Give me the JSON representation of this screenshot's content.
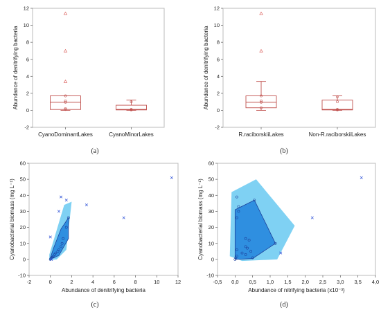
{
  "panels": [
    "(a)",
    "(b)",
    "(c)",
    "(d)"
  ],
  "colors": {
    "box": "#c0504d",
    "outlier": "#d9534f",
    "point": "#3a5bd9",
    "hull_outer": "#7fd1f3",
    "hull_inner": "#2f8fe0",
    "hull_inner_edge": "#1c3f9a",
    "frame": "#bbbbbb"
  },
  "chart_data": [
    {
      "type": "box",
      "panel": "(a)",
      "title": "",
      "xlabel": "",
      "ylabel": "Abundance of denitrifying bacteria",
      "ylim": [
        -2,
        12
      ],
      "yticks": [
        -2,
        0,
        2,
        4,
        6,
        8,
        10,
        12
      ],
      "grid": false,
      "categories": [
        "CyanoDominantLakes",
        "CyanoMinorLakes"
      ],
      "boxes": [
        {
          "whisker_low": 0,
          "q1": 0.1,
          "median": 0.95,
          "q3": 1.7,
          "whisker_high": 1.7,
          "points": [
            0.1,
            0.2,
            0.95,
            1.1,
            1.7
          ],
          "outliers": [
            3.4,
            7.0,
            11.4
          ]
        },
        {
          "whisker_low": 0,
          "q1": 0.05,
          "median": 0.1,
          "q3": 0.6,
          "whisker_high": 1.2,
          "points": [
            0.05,
            0.1,
            1.0
          ],
          "outliers": []
        }
      ]
    },
    {
      "type": "box",
      "panel": "(b)",
      "title": "",
      "xlabel": "",
      "ylabel": "Abundance of denitrifying bacteria",
      "ylim": [
        -2,
        12
      ],
      "yticks": [
        -2,
        0,
        2,
        4,
        6,
        8,
        10,
        12
      ],
      "grid": false,
      "categories": [
        "R.raciborskiiLakes",
        "Non-R.raciborskiiLakes"
      ],
      "boxes": [
        {
          "whisker_low": 0,
          "q1": 0.3,
          "median": 0.95,
          "q3": 1.7,
          "whisker_high": 3.4,
          "points": [
            0.3,
            0.95,
            1.1,
            1.7
          ],
          "outliers": [
            7.0,
            11.4
          ]
        },
        {
          "whisker_low": 0,
          "q1": 0.05,
          "median": 0.1,
          "q3": 1.2,
          "whisker_high": 1.7,
          "points": [
            0.05,
            0.1,
            1.0,
            1.6
          ],
          "outliers": []
        }
      ]
    },
    {
      "type": "scatter",
      "panel": "(c)",
      "title": "",
      "xlabel": "Abundance of denitrifying bacteria",
      "ylabel": "Cyanobacterial biomass (mg L⁻¹)",
      "xlim": [
        -2,
        12
      ],
      "ylim": [
        -10,
        60
      ],
      "xticks": [
        -2,
        0,
        2,
        4,
        6,
        8,
        10,
        12
      ],
      "yticks": [
        -10,
        0,
        10,
        20,
        30,
        40,
        50,
        60
      ],
      "grid": false,
      "inner_points": [
        [
          0,
          0
        ],
        [
          0.05,
          0.5
        ],
        [
          0.1,
          1
        ],
        [
          0.2,
          1.5
        ],
        [
          0.3,
          2
        ],
        [
          0.4,
          3
        ],
        [
          0.5,
          4
        ],
        [
          0.7,
          5
        ],
        [
          0.8,
          6
        ],
        [
          1.0,
          8
        ],
        [
          1.1,
          10
        ],
        [
          1.2,
          13
        ],
        [
          1.5,
          20
        ],
        [
          1.7,
          26
        ]
      ],
      "outer_points": [
        [
          0,
          14
        ],
        [
          0.8,
          30
        ],
        [
          1.0,
          39
        ],
        [
          1.5,
          37
        ],
        [
          3.4,
          34
        ],
        [
          6.9,
          26
        ],
        [
          11.4,
          51
        ],
        [
          0.1,
          0
        ]
      ],
      "outer_hull": [
        [
          -0.1,
          -0.5
        ],
        [
          0.6,
          0
        ],
        [
          1.5,
          6
        ],
        [
          2.0,
          36
        ],
        [
          1.3,
          34
        ],
        [
          0.4,
          14
        ],
        [
          -0.1,
          3
        ]
      ],
      "inner_hull": [
        [
          0,
          0
        ],
        [
          0.8,
          2.5
        ],
        [
          1.7,
          13
        ],
        [
          1.7,
          26
        ],
        [
          1.0,
          19
        ],
        [
          0.3,
          7
        ],
        [
          0,
          1
        ]
      ]
    },
    {
      "type": "scatter",
      "panel": "(d)",
      "title": "",
      "xlabel": "Abundance of nitrifying bacteria (x10⁻³)",
      "ylabel": "Cyanobacterial biomass (mg L⁻¹)",
      "xlim": [
        -0.5,
        4.0
      ],
      "ylim": [
        -10,
        60
      ],
      "xticks": [
        -0.5,
        0.0,
        0.5,
        1.0,
        1.5,
        2.0,
        2.5,
        3.0,
        3.5,
        4.0
      ],
      "xtick_labels": [
        "-0,5",
        "0,0",
        "0,5",
        "1,0",
        "1,5",
        "2,0",
        "2,5",
        "3,0",
        "3,5",
        "4,0"
      ],
      "yticks": [
        -10,
        0,
        10,
        20,
        30,
        40,
        50,
        60
      ],
      "grid": false,
      "inner_points": [
        [
          0,
          0
        ],
        [
          0.02,
          1
        ],
        [
          0.05,
          2
        ],
        [
          0.05,
          6
        ],
        [
          0.05,
          26
        ],
        [
          0.1,
          30
        ],
        [
          0.1,
          33
        ],
        [
          0.05,
          39
        ],
        [
          0.2,
          4
        ],
        [
          0.3,
          3
        ],
        [
          0.3,
          8
        ],
        [
          0.3,
          13
        ],
        [
          0.4,
          12
        ],
        [
          0.35,
          7
        ],
        [
          0.45,
          5
        ],
        [
          0.5,
          1
        ],
        [
          0.55,
          37
        ],
        [
          1.15,
          10
        ]
      ],
      "outer_points": [
        [
          1.3,
          4
        ],
        [
          2.2,
          26
        ],
        [
          3.6,
          51
        ]
      ],
      "outer_hull": [
        [
          -0.1,
          42
        ],
        [
          0.6,
          50
        ],
        [
          1.7,
          21
        ],
        [
          1.2,
          0
        ],
        [
          0.2,
          -1
        ],
        [
          -0.15,
          2
        ]
      ],
      "inner_hull": [
        [
          0,
          31
        ],
        [
          0.55,
          37
        ],
        [
          1.15,
          10
        ],
        [
          0.5,
          0.5
        ],
        [
          0,
          0
        ]
      ]
    }
  ]
}
